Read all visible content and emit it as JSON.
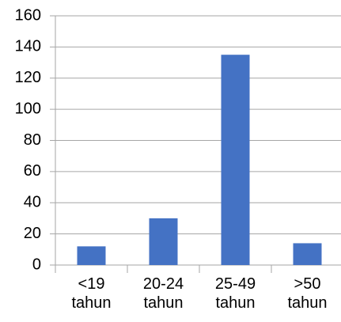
{
  "chart_data": {
    "type": "bar",
    "categories": [
      "<19 tahun",
      "20-24 tahun",
      "25-49 tahun",
      ">50 tahun"
    ],
    "values": [
      12,
      30,
      135,
      14
    ],
    "color": "#4472c4",
    "ylim": [
      0,
      160
    ],
    "yticks": [
      0,
      20,
      40,
      60,
      80,
      100,
      120,
      140,
      160
    ],
    "grid": true
  }
}
